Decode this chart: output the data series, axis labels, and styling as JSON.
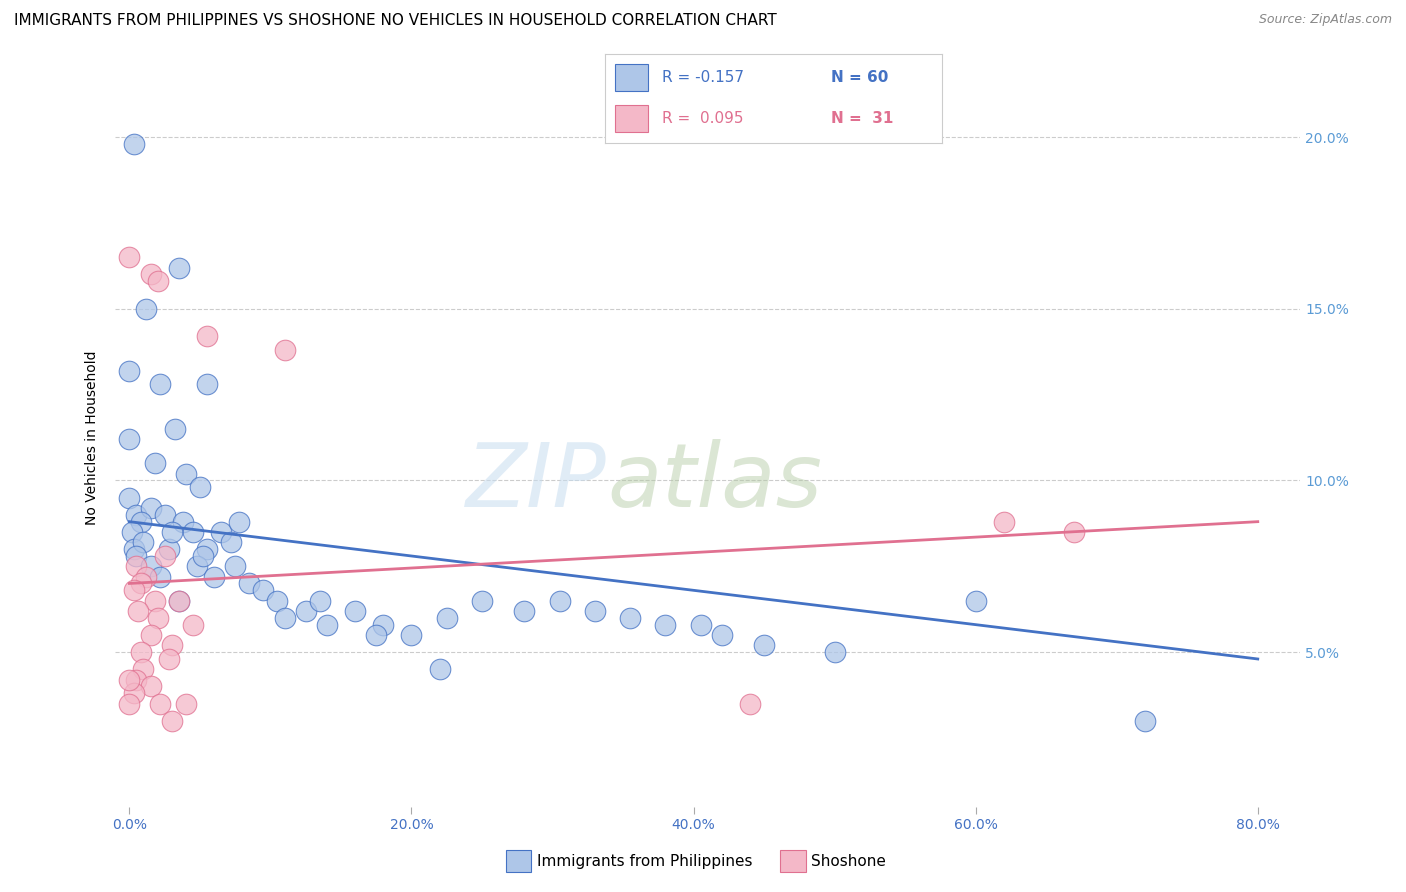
{
  "title": "IMMIGRANTS FROM PHILIPPINES VS SHOSHONE NO VEHICLES IN HOUSEHOLD CORRELATION CHART",
  "source": "Source: ZipAtlas.com",
  "ylabel": "No Vehicles in Household",
  "x_tick_labels": [
    "0.0%",
    "20.0%",
    "40.0%",
    "60.0%",
    "80.0%"
  ],
  "x_tick_values": [
    0.0,
    20.0,
    40.0,
    60.0,
    80.0
  ],
  "y_tick_labels": [
    "5.0%",
    "10.0%",
    "15.0%",
    "20.0%"
  ],
  "y_tick_values": [
    5.0,
    10.0,
    15.0,
    20.0
  ],
  "xlim": [
    -1.0,
    83.0
  ],
  "ylim": [
    0.5,
    22.0
  ],
  "legend_blue_label": "Immigrants from Philippines",
  "legend_pink_label": "Shoshone",
  "legend_R_blue": "R = -0.157",
  "legend_N_blue": "N = 60",
  "legend_R_pink": "R =  0.095",
  "legend_N_pink": "N =  31",
  "blue_color": "#aec6e8",
  "pink_color": "#f4b8c8",
  "trend_blue": "#4472c4",
  "trend_pink": "#e07090",
  "blue_scatter": [
    [
      0.3,
      19.8
    ],
    [
      3.5,
      16.2
    ],
    [
      1.2,
      15.0
    ],
    [
      0.0,
      13.2
    ],
    [
      2.2,
      12.8
    ],
    [
      5.5,
      12.8
    ],
    [
      3.2,
      11.5
    ],
    [
      0.0,
      11.2
    ],
    [
      1.8,
      10.5
    ],
    [
      4.0,
      10.2
    ],
    [
      5.0,
      9.8
    ],
    [
      0.0,
      9.5
    ],
    [
      0.5,
      9.0
    ],
    [
      1.5,
      9.2
    ],
    [
      0.8,
      8.8
    ],
    [
      2.5,
      9.0
    ],
    [
      0.2,
      8.5
    ],
    [
      3.8,
      8.8
    ],
    [
      6.5,
      8.5
    ],
    [
      7.2,
      8.2
    ],
    [
      0.3,
      8.0
    ],
    [
      1.0,
      8.2
    ],
    [
      2.8,
      8.0
    ],
    [
      4.5,
      8.5
    ],
    [
      7.8,
      8.8
    ],
    [
      5.5,
      8.0
    ],
    [
      3.0,
      8.5
    ],
    [
      0.5,
      7.8
    ],
    [
      1.5,
      7.5
    ],
    [
      2.2,
      7.2
    ],
    [
      4.8,
      7.5
    ],
    [
      6.0,
      7.2
    ],
    [
      7.5,
      7.5
    ],
    [
      8.5,
      7.0
    ],
    [
      5.2,
      7.8
    ],
    [
      3.5,
      6.5
    ],
    [
      9.5,
      6.8
    ],
    [
      10.5,
      6.5
    ],
    [
      12.5,
      6.2
    ],
    [
      11.0,
      6.0
    ],
    [
      14.0,
      5.8
    ],
    [
      13.5,
      6.5
    ],
    [
      16.0,
      6.2
    ],
    [
      18.0,
      5.8
    ],
    [
      17.5,
      5.5
    ],
    [
      20.0,
      5.5
    ],
    [
      22.5,
      6.0
    ],
    [
      25.0,
      6.5
    ],
    [
      28.0,
      6.2
    ],
    [
      30.5,
      6.5
    ],
    [
      33.0,
      6.2
    ],
    [
      35.5,
      6.0
    ],
    [
      38.0,
      5.8
    ],
    [
      40.5,
      5.8
    ],
    [
      42.0,
      5.5
    ],
    [
      45.0,
      5.2
    ],
    [
      50.0,
      5.0
    ],
    [
      22.0,
      4.5
    ],
    [
      60.0,
      6.5
    ],
    [
      72.0,
      3.0
    ]
  ],
  "pink_scatter": [
    [
      0.0,
      16.5
    ],
    [
      1.5,
      16.0
    ],
    [
      2.0,
      15.8
    ],
    [
      5.5,
      14.2
    ],
    [
      11.0,
      13.8
    ],
    [
      0.5,
      7.5
    ],
    [
      1.2,
      7.2
    ],
    [
      0.8,
      7.0
    ],
    [
      2.5,
      7.8
    ],
    [
      0.3,
      6.8
    ],
    [
      1.8,
      6.5
    ],
    [
      0.6,
      6.2
    ],
    [
      3.5,
      6.5
    ],
    [
      2.0,
      6.0
    ],
    [
      4.5,
      5.8
    ],
    [
      1.5,
      5.5
    ],
    [
      3.0,
      5.2
    ],
    [
      0.8,
      5.0
    ],
    [
      2.8,
      4.8
    ],
    [
      1.0,
      4.5
    ],
    [
      0.5,
      4.2
    ],
    [
      1.5,
      4.0
    ],
    [
      0.3,
      3.8
    ],
    [
      2.2,
      3.5
    ],
    [
      4.0,
      3.5
    ],
    [
      0.0,
      3.5
    ],
    [
      0.0,
      4.2
    ],
    [
      3.0,
      3.0
    ],
    [
      44.0,
      3.5
    ],
    [
      62.0,
      8.8
    ],
    [
      67.0,
      8.5
    ]
  ],
  "blue_line": [
    [
      0.0,
      8.8
    ],
    [
      80.0,
      4.8
    ]
  ],
  "pink_line": [
    [
      0.0,
      7.0
    ],
    [
      80.0,
      8.8
    ]
  ],
  "watermark_zip": "ZIP",
  "watermark_atlas": "atlas",
  "background_color": "#ffffff",
  "grid_color": "#cccccc",
  "title_fontsize": 11,
  "axis_label_fontsize": 10,
  "tick_fontsize": 10,
  "right_tick_color": "#5b9bd5"
}
